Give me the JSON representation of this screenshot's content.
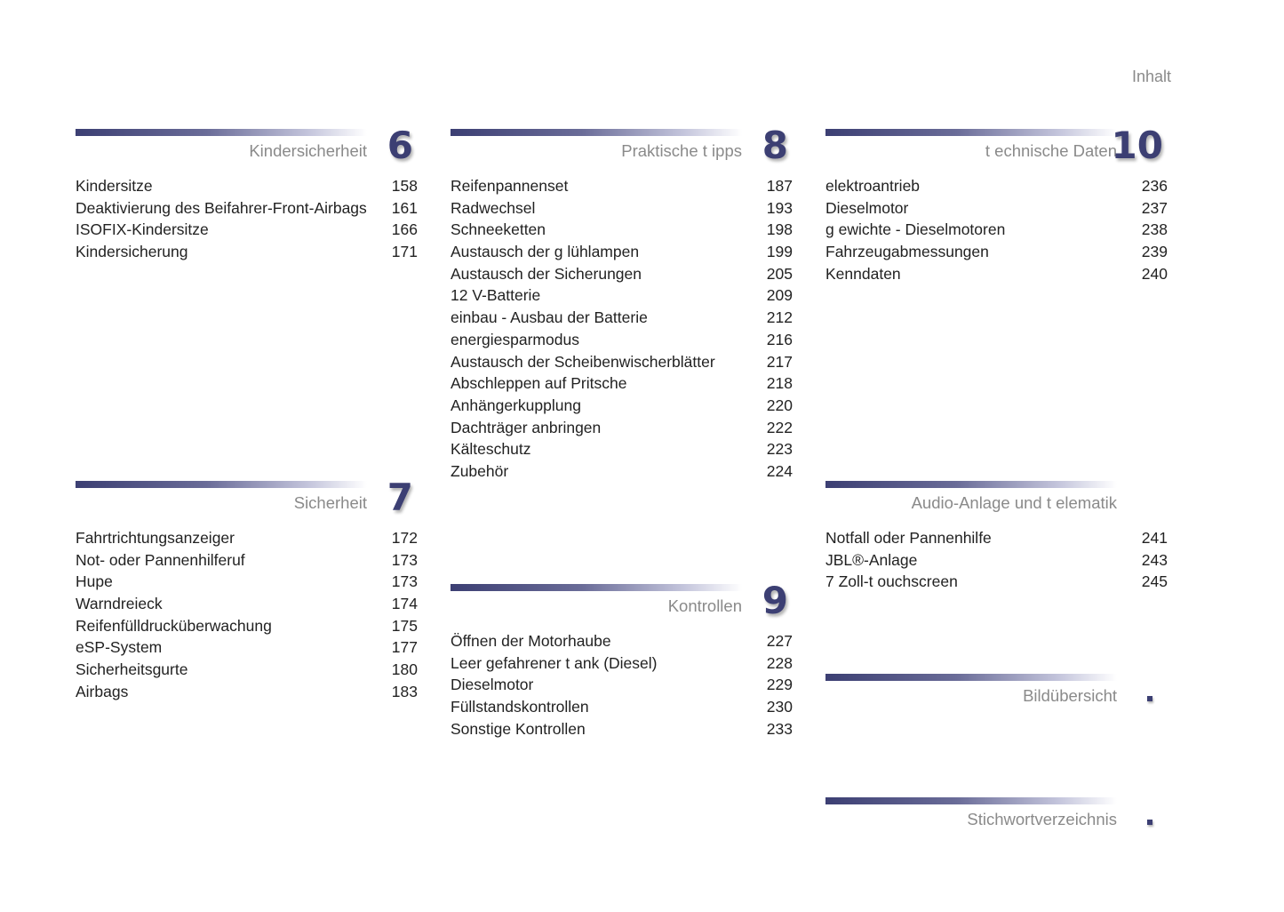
{
  "header": "Inhalt",
  "accent_color": "#3c3f73",
  "sections": [
    {
      "number": "6",
      "title": "Kindersicherheit",
      "items": [
        {
          "label": "Kindersitze",
          "page": "158"
        },
        {
          "label": "Deaktivierung des Beifahrer-Front-Airbags",
          "page": "161"
        },
        {
          "label": "ISOFIX-Kindersitze",
          "page": "166"
        },
        {
          "label": "Kindersicherung",
          "page": "171"
        }
      ]
    },
    {
      "number": "7",
      "title": "Sicherheit",
      "items": [
        {
          "label": "Fahrtrichtungsanzeiger",
          "page": "172"
        },
        {
          "label": "Not- oder Pannenhilferuf",
          "page": "173"
        },
        {
          "label": "Hupe",
          "page": "173"
        },
        {
          "label": "Warndreieck",
          "page": "174"
        },
        {
          "label": "Reifenfülldrucküberwachung",
          "page": "175"
        },
        {
          "label": "eSP-System",
          "page": "177"
        },
        {
          "label": "Sicherheitsgurte",
          "page": "180"
        },
        {
          "label": "Airbags",
          "page": "183"
        }
      ]
    },
    {
      "number": "8",
      "title": "Praktische t ipps",
      "items": [
        {
          "label": "Reifenpannenset",
          "page": "187"
        },
        {
          "label": "Radwechsel",
          "page": "193"
        },
        {
          "label": "Schneeketten",
          "page": "198"
        },
        {
          "label": "Austausch der g lühlampen",
          "page": "199"
        },
        {
          "label": "Austausch der Sicherungen",
          "page": "205"
        },
        {
          "label": "12 V-Batterie",
          "page": "209"
        },
        {
          "label": "einbau - Ausbau der Batterie",
          "page": "212"
        },
        {
          "label": "energiesparmodus",
          "page": "216"
        },
        {
          "label": "Austausch der Scheibenwischerblätter",
          "page": "217"
        },
        {
          "label": "Abschleppen auf Pritsche",
          "page": "218"
        },
        {
          "label": "Anhängerkupplung",
          "page": "220"
        },
        {
          "label": "Dachträger anbringen",
          "page": "222"
        },
        {
          "label": "Kälteschutz",
          "page": "223"
        },
        {
          "label": "Zubehör",
          "page": "224"
        }
      ]
    },
    {
      "number": "9",
      "title": "Kontrollen",
      "items": [
        {
          "label": "Öffnen der Motorhaube",
          "page": "227"
        },
        {
          "label": "Leer gefahrener t ank (Diesel)",
          "page": "228"
        },
        {
          "label": "Dieselmotor",
          "page": "229"
        },
        {
          "label": "Füllstandskontrollen",
          "page": "230"
        },
        {
          "label": "Sonstige Kontrollen",
          "page": "233"
        }
      ]
    },
    {
      "number": "10",
      "title": "t echnische Daten",
      "items": [
        {
          "label": "elektroantrieb",
          "page": "236"
        },
        {
          "label": "Dieselmotor",
          "page": "237"
        },
        {
          "label": "g ewichte - Dieselmotoren",
          "page": "238"
        },
        {
          "label": "Fahrzeugabmessungen",
          "page": "239"
        },
        {
          "label": "Kenndaten",
          "page": "240"
        }
      ]
    },
    {
      "number": "",
      "title": "Audio-Anlage und t elematik",
      "items": [
        {
          "label": "Notfall oder Pannenhilfe",
          "page": "241"
        },
        {
          "label": "JBL®-Anlage",
          "page": "243"
        },
        {
          "label": "7 Zoll-t ouchscreen",
          "page": "245"
        }
      ]
    },
    {
      "number": "",
      "title": "Bildübersicht",
      "marker": "square",
      "items": []
    },
    {
      "number": "",
      "title": "Stichwortverzeichnis",
      "marker": "square",
      "items": []
    }
  ]
}
